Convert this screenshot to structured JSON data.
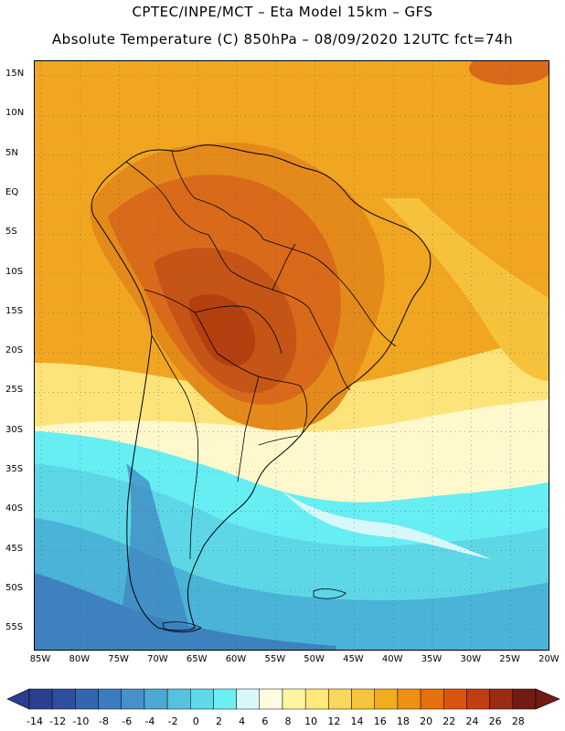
{
  "header": {
    "line1": "CPTEC/INPE/MCT –  Eta Model 15km – GFS",
    "line2": "Absolute Temperature (C) 850hPa – 08/09/2020 12UTC fct=74h"
  },
  "map": {
    "region": "South America",
    "lat_labels": [
      "15N",
      "10N",
      "5N",
      "EQ",
      "5S",
      "10S",
      "15S",
      "20S",
      "25S",
      "30S",
      "35S",
      "40S",
      "45S",
      "50S",
      "55S"
    ],
    "lon_labels": [
      "85W",
      "80W",
      "75W",
      "70W",
      "65W",
      "60W",
      "55W",
      "50W",
      "45W",
      "40W",
      "35W",
      "30W",
      "25W",
      "20W"
    ]
  },
  "colorbar": {
    "labels": [
      "-14",
      "-12",
      "-10",
      "-8",
      "-6",
      "-4",
      "-2",
      "0",
      "2",
      "4",
      "6",
      "8",
      "10",
      "12",
      "14",
      "16",
      "18",
      "20",
      "22",
      "24",
      "26",
      "28"
    ],
    "colors": [
      "#2a3f8f",
      "#2e4f9e",
      "#3366b0",
      "#3b7bbf",
      "#4592c8",
      "#4da9d4",
      "#55c3de",
      "#5dd9e8",
      "#6af0f2",
      "#d7f7fb",
      "#fffbe0",
      "#fff5a0",
      "#ffe979",
      "#fbd65c",
      "#f6c43d",
      "#f1ac1f",
      "#ee9013",
      "#e5700d",
      "#d95610",
      "#c03e12",
      "#9c2a14",
      "#731b12"
    ]
  },
  "palette": {
    "cold_deep": "#3d82bf",
    "cold": "#4ab3d8",
    "cool": "#5dd7e6",
    "cyan": "#66eef3",
    "pale": "#fff8cc",
    "yellow": "#fde47a",
    "gold": "#f6c23c",
    "orange": "#f0a620",
    "dark_orange": "#e48a1a",
    "hot": "#d86a1a",
    "hotter": "#c55516",
    "hottest": "#b4400f"
  }
}
